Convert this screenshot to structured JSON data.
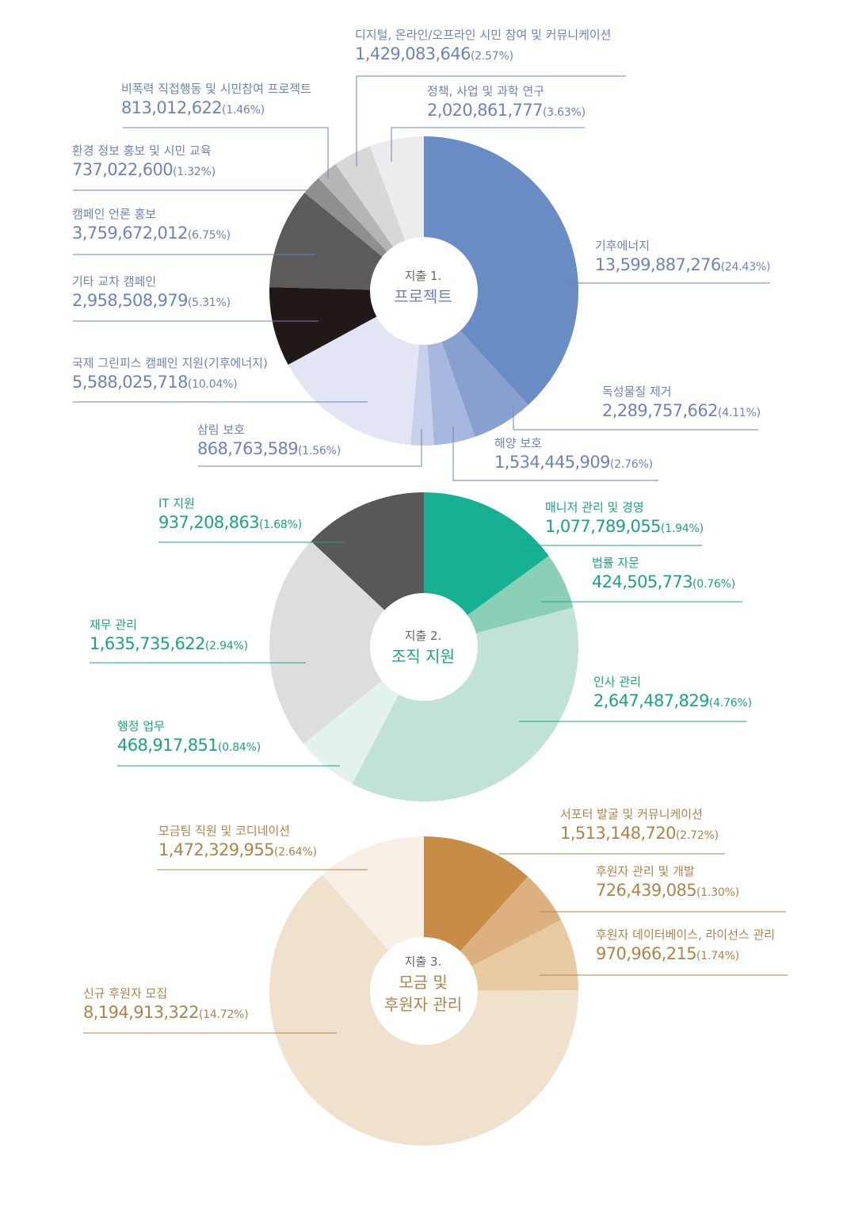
{
  "colors": {
    "project_text": "#6b85b8",
    "org_text": "#1aa386",
    "fund_text": "#b0834a"
  },
  "chart_data": [
    {
      "type": "pie",
      "title": "프로젝트",
      "subtitle": "지출 1.",
      "slices": [
        {
          "label": "기후에너지",
          "value": 13599887276,
          "value_text": "13,599,887,276",
          "pct_text": "(24.43%)",
          "color": "#6a8cc4"
        },
        {
          "label": "독성물질 제거",
          "value": 2289757662,
          "value_text": "2,289,757,662",
          "pct_text": "(4.11%)",
          "color": "#88a0d0"
        },
        {
          "label": "해양 보호",
          "value": 1534445909,
          "value_text": "1,534,445,909",
          "pct_text": "(2.76%)",
          "color": "#a6b8de"
        },
        {
          "label": "삼림 보호",
          "value": 868763589,
          "value_text": "868,763,589",
          "pct_text": "(1.56%)",
          "color": "#c6d0ea"
        },
        {
          "label": "국제 그린피스 캠페인 지원(기후에너지)",
          "value": 5588025718,
          "value_text": "5,588,025,718",
          "pct_text": "(10.04%)",
          "color": "#e2e6f4"
        },
        {
          "label": "기타 교차 캠페인",
          "value": 2958508979,
          "value_text": "2,958,508,979",
          "pct_text": "(5.31%)",
          "color": "#211918"
        },
        {
          "label": "캠페인 언론 홍보",
          "value": 3759672012,
          "value_text": "3,759,672,012",
          "pct_text": "(6.75%)",
          "color": "#5c5b5a"
        },
        {
          "label": "환경 정보 홍보 및 시민 교육",
          "value": 737022600,
          "value_text": "737,022,600",
          "pct_text": "(1.32%)",
          "color": "#8f8f8f"
        },
        {
          "label": "비폭력 직접행동 및 시민참여 프로젝트",
          "value": 813012622,
          "value_text": "813,012,622",
          "pct_text": "(1.46%)",
          "color": "#b5b5b5"
        },
        {
          "label": "디지털, 온라인/오프라인 시민 참여 및 커뮤니케이션",
          "value": 1429083646,
          "value_text": "1,429,083,646",
          "pct_text": "(2.57%)",
          "color": "#d8d8d8"
        },
        {
          "label": "정책, 사업 및 과학 연구",
          "value": 2020861777,
          "value_text": "2,020,861,777",
          "pct_text": "(3.63%)",
          "color": "#ececec"
        }
      ]
    },
    {
      "type": "pie",
      "title": "조직 지원",
      "subtitle": "지출 2.",
      "slices": [
        {
          "label": "매니저 관리 및 경영",
          "value": 1077789055,
          "value_text": "1,077,789,055",
          "pct_text": "(1.94%)",
          "color": "#16b192"
        },
        {
          "label": "법률 자문",
          "value": 424505773,
          "value_text": "424,505,773",
          "pct_text": "(0.76%)",
          "color": "#8ccfb7"
        },
        {
          "label": "인사 관리",
          "value": 2647487829,
          "value_text": "2,647,487,829",
          "pct_text": "(4.76%)",
          "color": "#c0e3d6"
        },
        {
          "label": "행정 업무",
          "value": 468917851,
          "value_text": "468,917,851",
          "pct_text": "(0.84%)",
          "color": "#e3f2ec"
        },
        {
          "label": "재무 관리",
          "value": 1635735622,
          "value_text": "1,635,735,622",
          "pct_text": "(2.94%)",
          "color": "#dcdddc"
        },
        {
          "label": "IT 지원",
          "value": 937208863,
          "value_text": "937,208,863",
          "pct_text": "(1.68%)",
          "color": "#585858"
        }
      ]
    },
    {
      "type": "pie",
      "title": "모금 및 후원자 관리",
      "title_lines": [
        "모금 및",
        "후원자 관리"
      ],
      "subtitle": "지출 3.",
      "slices": [
        {
          "label": "서포터 발굴 및 커뮤니케이션",
          "value": 1513148720,
          "value_text": "1,513,148,720",
          "pct_text": "(2.72%)",
          "color": "#c78d46"
        },
        {
          "label": "후원자 관리 및 개발",
          "value": 726439085,
          "value_text": "726,439,085",
          "pct_text": "(1.30%)",
          "color": "#dcb07f"
        },
        {
          "label": "후원자 데이터베이스, 라이선스 관리",
          "value": 970966215,
          "value_text": "970,966,215",
          "pct_text": "(1.74%)",
          "color": "#e8caa2"
        },
        {
          "label": "신규 후원자 모집",
          "value": 8194913322,
          "value_text": "8,194,913,322",
          "pct_text": "(14.72%)",
          "color": "#f0e1cd"
        },
        {
          "label": "모금팀 직원 및 코디네이션",
          "value": 1472329955,
          "value_text": "1,472,329,955",
          "pct_text": "(2.64%)",
          "color": "#f8efe6"
        }
      ]
    }
  ]
}
